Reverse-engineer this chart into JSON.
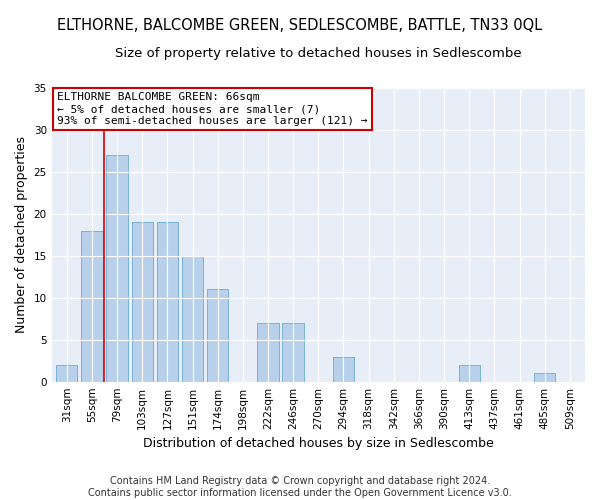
{
  "title": "ELTHORNE, BALCOMBE GREEN, SEDLESCOMBE, BATTLE, TN33 0QL",
  "subtitle": "Size of property relative to detached houses in Sedlescombe",
  "xlabel": "Distribution of detached houses by size in Sedlescombe",
  "ylabel": "Number of detached properties",
  "footnote1": "Contains HM Land Registry data © Crown copyright and database right 2024.",
  "footnote2": "Contains public sector information licensed under the Open Government Licence v3.0.",
  "categories": [
    "31sqm",
    "55sqm",
    "79sqm",
    "103sqm",
    "127sqm",
    "151sqm",
    "174sqm",
    "198sqm",
    "222sqm",
    "246sqm",
    "270sqm",
    "294sqm",
    "318sqm",
    "342sqm",
    "366sqm",
    "390sqm",
    "413sqm",
    "437sqm",
    "461sqm",
    "485sqm",
    "509sqm"
  ],
  "values": [
    2,
    18,
    27,
    19,
    19,
    15,
    11,
    0,
    7,
    7,
    0,
    3,
    0,
    0,
    0,
    0,
    2,
    0,
    0,
    1,
    0
  ],
  "bar_color": "#b8d0ea",
  "bar_edge_color": "#6aaad4",
  "background_color": "#e8eef8",
  "grid_color": "#ffffff",
  "vline_x": 1.5,
  "vline_color": "#dd0000",
  "ylim": [
    0,
    35
  ],
  "yticks": [
    0,
    5,
    10,
    15,
    20,
    25,
    30,
    35
  ],
  "annotation_text": "ELTHORNE BALCOMBE GREEN: 66sqm\n← 5% of detached houses are smaller (7)\n93% of semi-detached houses are larger (121) →",
  "annotation_box_facecolor": "#ffffff",
  "annotation_box_edgecolor": "#cc0000",
  "title_fontsize": 10.5,
  "subtitle_fontsize": 9.5,
  "axis_label_fontsize": 9,
  "tick_fontsize": 7.5,
  "annotation_fontsize": 8,
  "footnote_fontsize": 7
}
